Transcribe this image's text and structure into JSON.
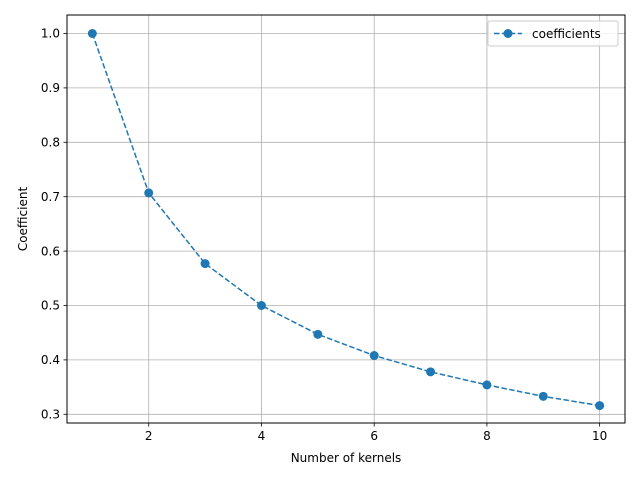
{
  "chart_data": {
    "type": "line",
    "title": "",
    "xlabel": "Number of kernels",
    "ylabel": "Coefficient",
    "xlim": [
      0.55,
      10.45
    ],
    "ylim": [
      0.284,
      1.034
    ],
    "x_ticks": [
      2,
      4,
      6,
      8,
      10
    ],
    "y_ticks": [
      0.3,
      0.4,
      0.5,
      0.6,
      0.7,
      0.8,
      0.9,
      1.0
    ],
    "x_tick_labels": [
      "2",
      "4",
      "6",
      "8",
      "10"
    ],
    "y_tick_labels": [
      "0.3",
      "0.4",
      "0.5",
      "0.6",
      "0.7",
      "0.8",
      "0.9",
      "1.0"
    ],
    "grid": true,
    "legend_position": "top-right",
    "series": [
      {
        "name": "coefficients",
        "color": "#1f77b4",
        "line_style": "dashed",
        "marker": "circle",
        "x": [
          1,
          2,
          3,
          4,
          5,
          6,
          7,
          8,
          9,
          10
        ],
        "y": [
          1.0,
          0.707,
          0.577,
          0.5,
          0.447,
          0.408,
          0.378,
          0.354,
          0.333,
          0.316
        ]
      }
    ]
  }
}
